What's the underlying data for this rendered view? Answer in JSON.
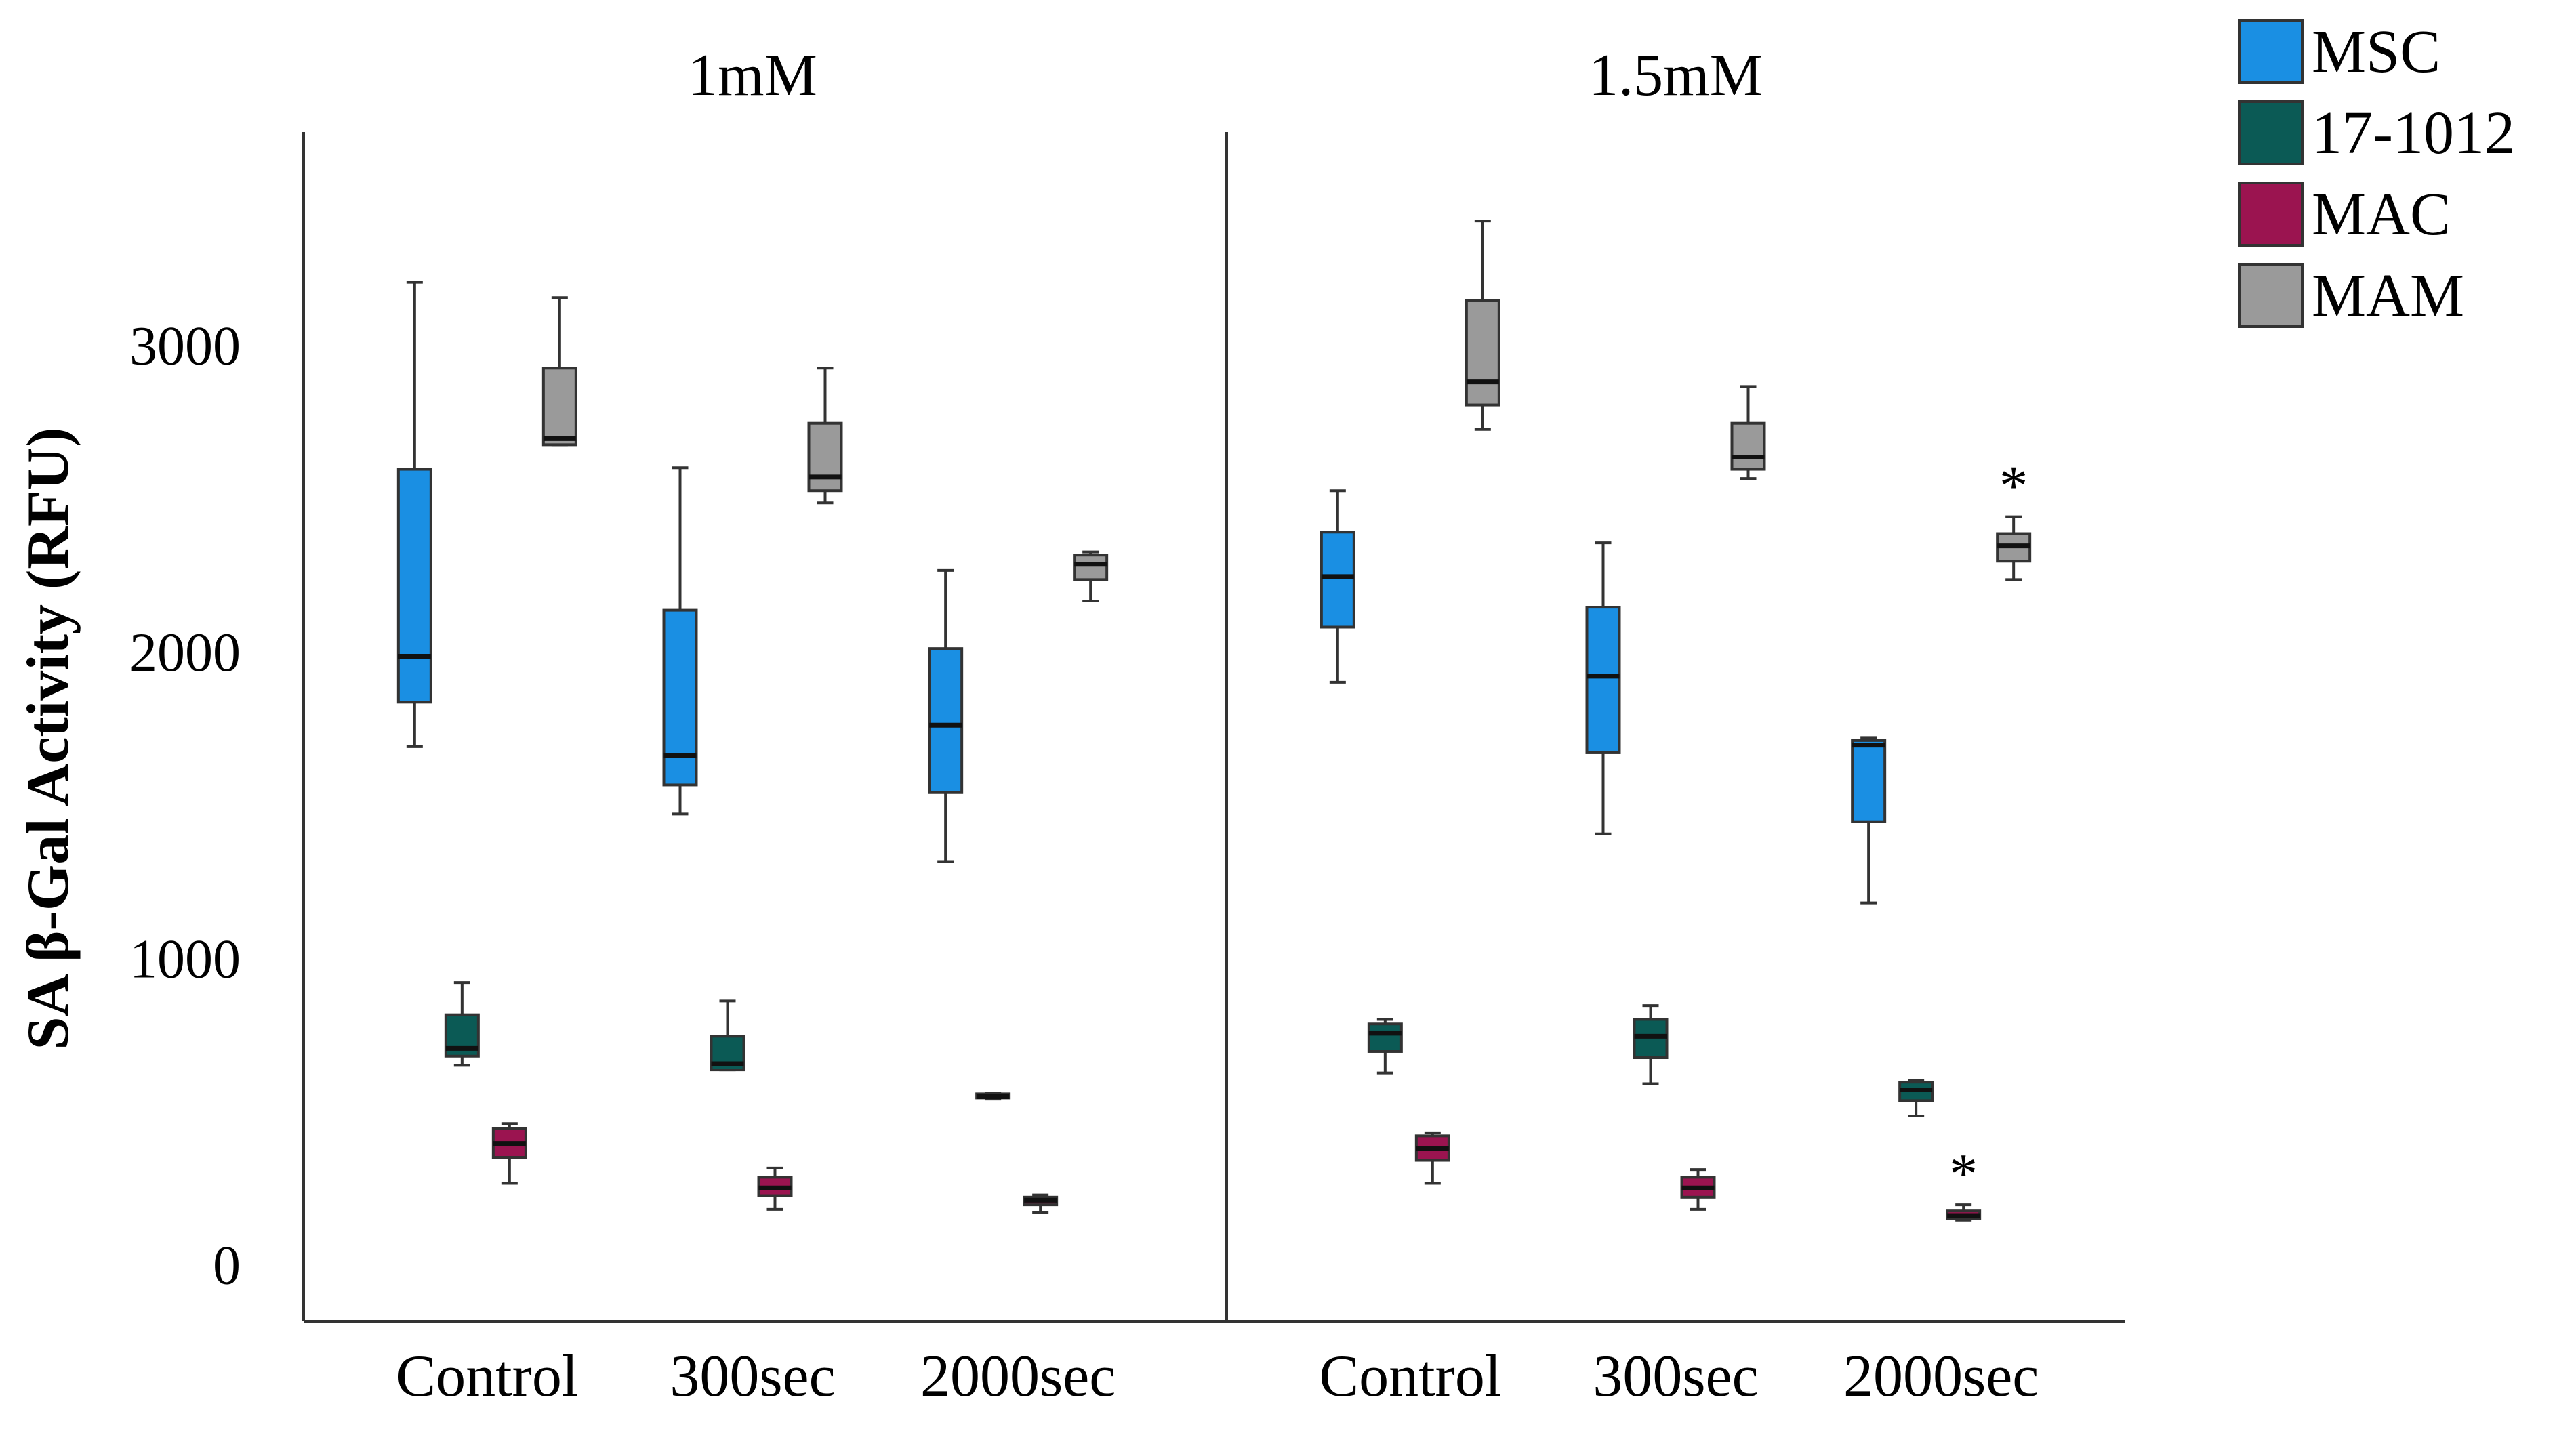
{
  "chart_data": {
    "type": "box",
    "ylabel": "SA β-Gal Activity (RFU)",
    "yticks": [
      0,
      1000,
      2000,
      3000
    ],
    "ylim": [
      -180,
      3700
    ],
    "panels": [
      "1mM",
      "1.5mM"
    ],
    "categories": [
      "Control",
      "300sec",
      "2000sec"
    ],
    "legend": {
      "position": "top-right",
      "entries": [
        {
          "name": "MSC",
          "color": "#1a8fe3"
        },
        {
          "name": "17-1012",
          "color": "#0b5a55"
        },
        {
          "name": "MAC",
          "color": "#9b1450"
        },
        {
          "name": "MAM",
          "color": "#9a9a9a"
        }
      ]
    },
    "series": [
      {
        "name": "MSC",
        "color": "#1a8fe3",
        "data": [
          [
            {
              "min": 1695,
              "q1": 1840,
              "median": 1990,
              "q3": 2600,
              "max": 3210
            },
            {
              "min": 1475,
              "q1": 1570,
              "median": 1665,
              "q3": 2140,
              "max": 2605
            },
            {
              "min": 1320,
              "q1": 1545,
              "median": 1765,
              "q3": 2015,
              "max": 2270
            }
          ],
          [
            {
              "min": 1905,
              "q1": 2085,
              "median": 2250,
              "q3": 2395,
              "max": 2530
            },
            {
              "min": 1410,
              "q1": 1675,
              "median": 1925,
              "q3": 2150,
              "max": 2360
            },
            {
              "min": 1185,
              "q1": 1450,
              "median": 1700,
              "q3": 1715,
              "max": 1725
            }
          ]
        ]
      },
      {
        "name": "17-1012",
        "color": "#0b5a55",
        "data": [
          [
            {
              "min": 655,
              "q1": 685,
              "median": 710,
              "q3": 820,
              "max": 925
            },
            {
              "min": 640,
              "q1": 640,
              "median": 660,
              "q3": 750,
              "max": 865
            },
            {
              "min": 545,
              "q1": 550,
              "median": 553,
              "q3": 562,
              "max": 565
            }
          ],
          [
            {
              "min": 630,
              "q1": 700,
              "median": 760,
              "q3": 790,
              "max": 805
            },
            {
              "min": 595,
              "q1": 680,
              "median": 750,
              "q3": 805,
              "max": 850
            },
            {
              "min": 490,
              "q1": 540,
              "median": 575,
              "q3": 600,
              "max": 605
            }
          ]
        ]
      },
      {
        "name": "MAC",
        "color": "#9b1450",
        "data": [
          [
            {
              "min": 270,
              "q1": 355,
              "median": 400,
              "q3": 450,
              "max": 465
            },
            {
              "min": 185,
              "q1": 230,
              "median": 255,
              "q3": 290,
              "max": 320
            },
            {
              "min": 175,
              "q1": 200,
              "median": 215,
              "q3": 225,
              "max": 232
            }
          ],
          [
            {
              "min": 270,
              "q1": 345,
              "median": 385,
              "q3": 425,
              "max": 435
            },
            {
              "min": 185,
              "q1": 225,
              "median": 255,
              "q3": 290,
              "max": 315
            },
            {
              "min": 150,
              "q1": 155,
              "median": 165,
              "q3": 180,
              "max": 200
            }
          ]
        ]
      },
      {
        "name": "MAM",
        "color": "#9a9a9a",
        "data": [
          [
            {
              "min": 2680,
              "q1": 2680,
              "median": 2700,
              "q3": 2930,
              "max": 3160
            },
            {
              "min": 2490,
              "q1": 2530,
              "median": 2575,
              "q3": 2750,
              "max": 2930
            },
            {
              "min": 2170,
              "q1": 2240,
              "median": 2290,
              "q3": 2320,
              "max": 2330
            }
          ],
          [
            {
              "min": 2730,
              "q1": 2810,
              "median": 2885,
              "q3": 3150,
              "max": 3410
            },
            {
              "min": 2570,
              "q1": 2600,
              "median": 2640,
              "q3": 2750,
              "max": 2870
            },
            {
              "min": 2240,
              "q1": 2300,
              "median": 2350,
              "q3": 2390,
              "max": 2445
            }
          ]
        ]
      }
    ],
    "annotations": [
      {
        "text": "*",
        "panel": "1.5mM",
        "category": "2000sec",
        "series": "MAM"
      },
      {
        "text": "*",
        "panel": "1.5mM",
        "category": "2000sec",
        "series": "MAC"
      }
    ]
  }
}
